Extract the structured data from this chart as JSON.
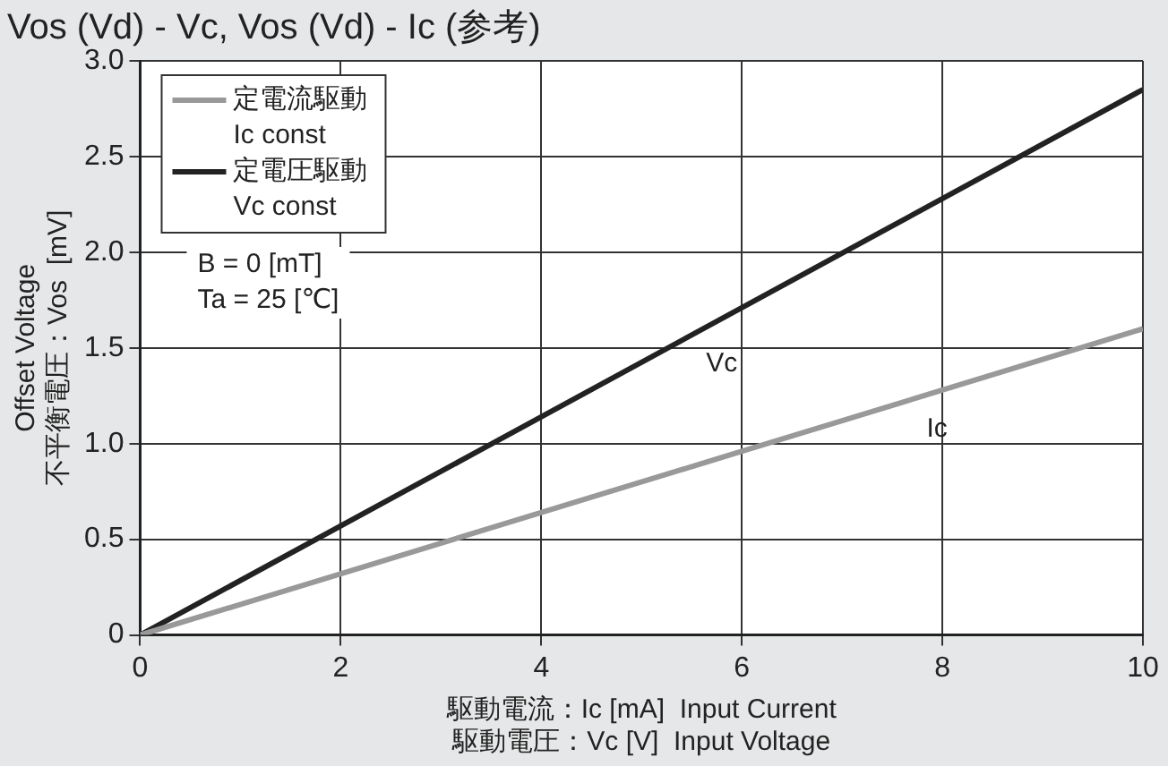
{
  "chart_data": {
    "type": "line",
    "title": "Vos (Vd) - Vc, Vos (Vd) - Ic (参考)",
    "xlabel": "駆動電流：Ic [mA]  Input Current\n駆動電圧：Vc [V]  Input Voltage",
    "ylabel": "Offset Voltage\n不平衡電圧：Vos  [mV]",
    "x": [
      0,
      10
    ],
    "series": [
      {
        "name": "定電流駆動\nIc const",
        "color": "#999999",
        "values": [
          0,
          1.6
        ]
      },
      {
        "name": "定電圧駆動\nVc const",
        "color": "#222222",
        "values": [
          0,
          2.85
        ]
      }
    ],
    "xlim": [
      0,
      10
    ],
    "xticks": [
      0,
      2,
      4,
      6,
      8,
      10
    ],
    "ylim": [
      0,
      3
    ],
    "yticks": [
      {
        "value": 0,
        "label": "0"
      },
      {
        "value": 0.5,
        "label": "0.5"
      },
      {
        "value": 1,
        "label": "1.0"
      },
      {
        "value": 1.5,
        "label": "1.5"
      },
      {
        "value": 2,
        "label": "2.0"
      },
      {
        "value": 2.5,
        "label": "2.5"
      },
      {
        "value": 3,
        "label": "3.0"
      }
    ],
    "grid": true,
    "legend": "top left",
    "marker": "none",
    "line_style": "solid",
    "annotations": [
      {
        "text": "Vc",
        "x": 5.5,
        "y": 1.57
      },
      {
        "text": "Ic",
        "x": 7.7,
        "y": 1.23
      },
      "B = 0 [mT]\nTa = 25 [℃]"
    ]
  }
}
